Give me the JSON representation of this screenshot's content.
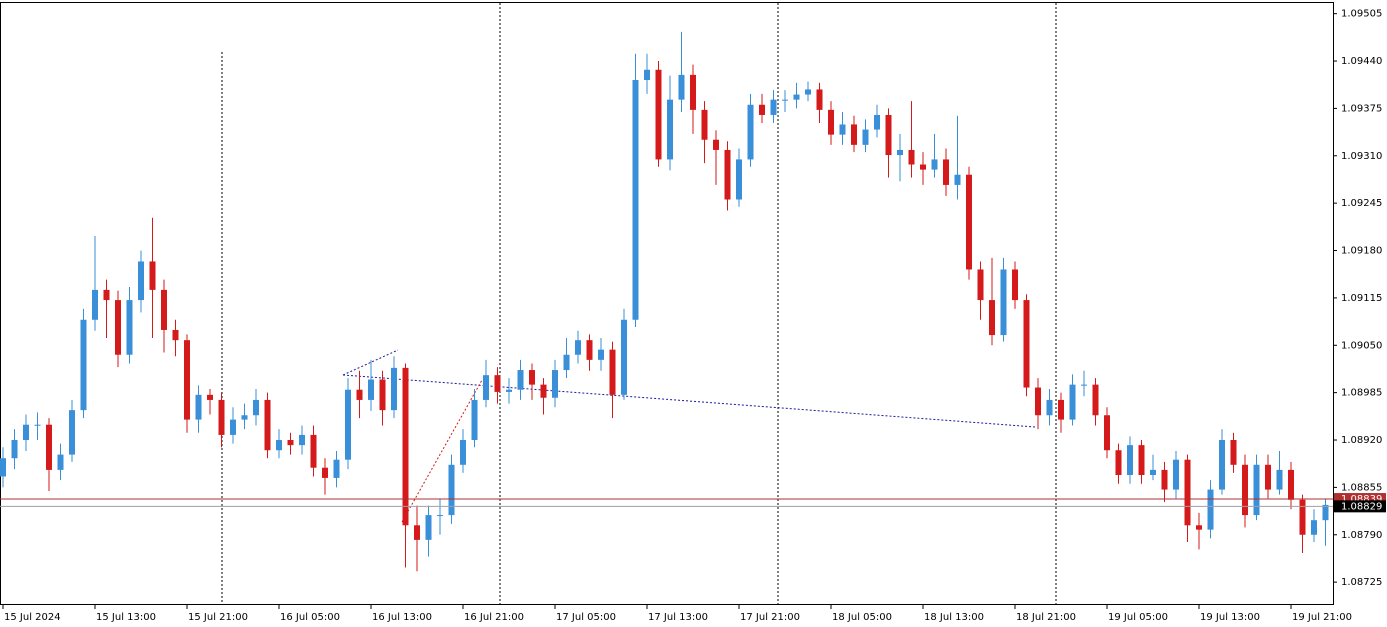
{
  "chart_data": {
    "type": "candlestick",
    "categories": [
      "15 Jul 2024",
      null,
      null,
      null,
      null,
      null,
      null,
      null,
      "15 Jul 13:00",
      null,
      null,
      null,
      null,
      null,
      null,
      null,
      "15 Jul 21:00",
      null,
      null,
      null,
      null,
      null,
      null,
      null,
      "16 Jul 05:00",
      null,
      null,
      null,
      null,
      null,
      null,
      null,
      "16 Jul 13:00",
      null,
      null,
      null,
      null,
      null,
      null,
      null,
      "16 Jul 21:00",
      null,
      null,
      null,
      null,
      null,
      null,
      null,
      "17 Jul 05:00",
      null,
      null,
      null,
      null,
      null,
      null,
      null,
      "17 Jul 13:00",
      null,
      null,
      null,
      null,
      null,
      null,
      null,
      "17 Jul 21:00",
      null,
      null,
      null,
      null,
      null,
      null,
      null,
      "18 Jul 05:00",
      null,
      null,
      null,
      null,
      null,
      null,
      null,
      "18 Jul 13:00",
      null,
      null,
      null,
      null,
      null,
      null,
      null,
      "18 Jul 21:00",
      null,
      null,
      null,
      null,
      null,
      null,
      null,
      "19 Jul 05:00",
      null,
      null,
      null,
      null,
      null,
      null,
      null,
      "19 Jul 13:00",
      null,
      null,
      null,
      null,
      null,
      null,
      null,
      "19 Jul 21:00",
      null,
      null,
      null
    ],
    "open": [
      1.0887,
      1.08895,
      1.0892,
      1.08941,
      1.08941,
      1.08879,
      1.089,
      1.08961,
      1.09085,
      1.09126,
      1.09112,
      1.09037,
      1.09112,
      1.09165,
      1.09126,
      1.09071,
      1.09057,
      1.08948,
      1.08982,
      1.08975,
      1.08927,
      1.08948,
      1.08954,
      1.08975,
      1.08906,
      1.0892,
      1.08913,
      1.08927,
      1.08882,
      1.08868,
      1.08893,
      1.08989,
      1.08975,
      1.09003,
      1.08961,
      1.09019,
      1.08803,
      1.08783,
      1.08817,
      1.08817,
      1.08886,
      1.0892,
      1.08975,
      1.09009,
      1.08986,
      1.08989,
      1.09016,
      1.08996,
      1.08978,
      1.09016,
      1.09037,
      1.09057,
      1.0903,
      1.09044,
      1.08982,
      1.09085,
      1.09414,
      1.09428,
      1.09305,
      1.09387,
      1.09421,
      1.09373,
      1.09332,
      1.09318,
      1.0925,
      1.09305,
      1.0938,
      1.09366,
      1.09387,
      1.09387,
      1.09394,
      1.09401,
      1.09373,
      1.09339,
      1.09353,
      1.09325,
      1.09346,
      1.09366,
      1.09311,
      1.09318,
      1.09298,
      1.09291,
      1.09305,
      1.0927,
      1.09284,
      1.09154,
      1.09112,
      1.09064,
      1.09154,
      1.09112,
      1.08992,
      1.08954,
      1.08975,
      1.08948,
      1.08996,
      1.08996,
      1.08954,
      1.08906,
      1.08872,
      1.08913,
      1.08872,
      1.08879,
      1.08852,
      1.08893,
      1.08803,
      1.08797,
      1.08852,
      1.0892,
      1.08886,
      1.08817,
      1.08886,
      1.08852,
      1.08879,
      1.08838,
      1.0879,
      1.0881
    ],
    "high": [
      1.0891,
      1.08935,
      1.08955,
      1.08958,
      1.0895,
      1.08915,
      1.08975,
      1.091,
      1.092,
      1.0914,
      1.09125,
      1.0913,
      1.0918,
      1.09225,
      1.0914,
      1.09085,
      1.09065,
      1.08995,
      1.0899,
      1.08985,
      1.08965,
      1.0897,
      1.0899,
      1.08985,
      1.08935,
      1.0893,
      1.0894,
      1.0894,
      1.08895,
      1.08905,
      1.09005,
      1.09015,
      1.0903,
      1.09015,
      1.09035,
      1.09025,
      1.0883,
      1.0883,
      1.0884,
      1.089,
      1.08935,
      1.0899,
      1.0903,
      1.0902,
      1.09005,
      1.0903,
      1.09025,
      1.09005,
      1.0903,
      1.0906,
      1.0907,
      1.09065,
      1.0906,
      1.09055,
      1.091,
      1.0945,
      1.0945,
      1.0944,
      1.0942,
      1.0948,
      1.09435,
      1.09385,
      1.09345,
      1.0933,
      1.0932,
      1.09395,
      1.09395,
      1.094,
      1.094,
      1.0941,
      1.09412,
      1.0941,
      1.09385,
      1.0937,
      1.09365,
      1.0936,
      1.0938,
      1.09375,
      1.0934,
      1.09385,
      1.09315,
      1.0934,
      1.0932,
      1.09365,
      1.09295,
      1.09165,
      1.0917,
      1.0917,
      1.09165,
      1.0912,
      1.09005,
      1.0899,
      1.08985,
      1.0901,
      1.09015,
      1.09005,
      1.08965,
      1.08915,
      1.08925,
      1.0892,
      1.089,
      1.0889,
      1.08905,
      1.089,
      1.0882,
      1.08865,
      1.08935,
      1.0893,
      1.089,
      1.089,
      1.089,
      1.08905,
      1.0889,
      1.08845,
      1.08825,
      1.0884
    ],
    "low": [
      1.08855,
      1.0888,
      1.08905,
      1.0892,
      1.0885,
      1.08865,
      1.0889,
      1.0895,
      1.0907,
      1.0906,
      1.0902,
      1.09025,
      1.09095,
      1.0906,
      1.0904,
      1.09035,
      1.0893,
      1.0893,
      1.08955,
      1.0891,
      1.08915,
      1.08935,
      1.0894,
      1.08895,
      1.08895,
      1.089,
      1.089,
      1.0887,
      1.08845,
      1.08855,
      1.0888,
      1.0895,
      1.0896,
      1.0894,
      1.0895,
      1.08745,
      1.0874,
      1.0876,
      1.0879,
      1.08805,
      1.08875,
      1.0891,
      1.08965,
      1.0897,
      1.0897,
      1.08975,
      1.08975,
      1.08955,
      1.08965,
      1.09005,
      1.09025,
      1.09015,
      1.09015,
      1.0895,
      1.08975,
      1.09075,
      1.09395,
      1.09295,
      1.0929,
      1.0937,
      1.0934,
      1.093,
      1.0927,
      1.09235,
      1.0924,
      1.09295,
      1.09355,
      1.09355,
      1.0937,
      1.09375,
      1.09385,
      1.09355,
      1.09325,
      1.09325,
      1.09315,
      1.09315,
      1.09335,
      1.0928,
      1.09275,
      1.0928,
      1.0927,
      1.0928,
      1.09255,
      1.0925,
      1.0914,
      1.09085,
      1.0905,
      1.09055,
      1.091,
      1.0898,
      1.08935,
      1.0894,
      1.0893,
      1.0894,
      1.0898,
      1.0894,
      1.08895,
      1.0886,
      1.0886,
      1.0886,
      1.08865,
      1.08835,
      1.0884,
      1.0878,
      1.0877,
      1.08785,
      1.08845,
      1.08875,
      1.088,
      1.0881,
      1.0884,
      1.08845,
      1.08825,
      1.08765,
      1.0878,
      1.08775
    ],
    "close": [
      1.08895,
      1.0892,
      1.08941,
      1.08941,
      1.08879,
      1.089,
      1.08961,
      1.09085,
      1.09126,
      1.09112,
      1.09037,
      1.09112,
      1.09165,
      1.09126,
      1.09071,
      1.09057,
      1.08948,
      1.08982,
      1.08975,
      1.08927,
      1.08948,
      1.08954,
      1.08975,
      1.08906,
      1.0892,
      1.08913,
      1.08927,
      1.08882,
      1.08868,
      1.08893,
      1.08989,
      1.08975,
      1.09003,
      1.08961,
      1.09019,
      1.08803,
      1.08783,
      1.08817,
      1.08817,
      1.08886,
      1.0892,
      1.08975,
      1.09009,
      1.08986,
      1.08989,
      1.09016,
      1.08996,
      1.08978,
      1.09016,
      1.09037,
      1.09057,
      1.0903,
      1.09044,
      1.08982,
      1.09085,
      1.09414,
      1.09428,
      1.09305,
      1.09387,
      1.09421,
      1.09373,
      1.09332,
      1.09318,
      1.0925,
      1.09305,
      1.0938,
      1.09366,
      1.09387,
      1.09387,
      1.09394,
      1.09401,
      1.09373,
      1.09339,
      1.09353,
      1.09325,
      1.09346,
      1.09366,
      1.09311,
      1.09318,
      1.09298,
      1.09291,
      1.09305,
      1.0927,
      1.09284,
      1.09154,
      1.09112,
      1.09064,
      1.09154,
      1.09112,
      1.08992,
      1.08954,
      1.08975,
      1.08948,
      1.08996,
      1.08996,
      1.08954,
      1.08906,
      1.08872,
      1.08913,
      1.08872,
      1.08879,
      1.08852,
      1.08893,
      1.08803,
      1.08797,
      1.08852,
      1.0892,
      1.08886,
      1.08817,
      1.08886,
      1.08852,
      1.08879,
      1.08838,
      1.0879,
      1.0881,
      1.08831
    ],
    "up_color": "#3a8fd9",
    "down_color": "#d41a1a",
    "ylim": [
      1.08695,
      1.09521
    ],
    "yticks": [
      1.09505,
      {
        "value": 1.0944,
        "label": "1.09440"
      },
      1.09375,
      {
        "value": 1.0931,
        "label": "1.09310"
      },
      1.09245,
      {
        "value": 1.0918,
        "label": "1.09180"
      },
      1.09115,
      {
        "value": 1.0905,
        "label": "1.09050"
      },
      1.08985,
      {
        "value": 1.0892,
        "label": "1.08920"
      },
      1.08855,
      {
        "value": 1.0879,
        "label": "1.08790"
      },
      1.08725
    ],
    "price_lines": [
      {
        "value": 1.08839,
        "color": "#b03030"
      },
      {
        "value": 1.08829,
        "color": "#a0a0a0"
      }
    ]
  }
}
